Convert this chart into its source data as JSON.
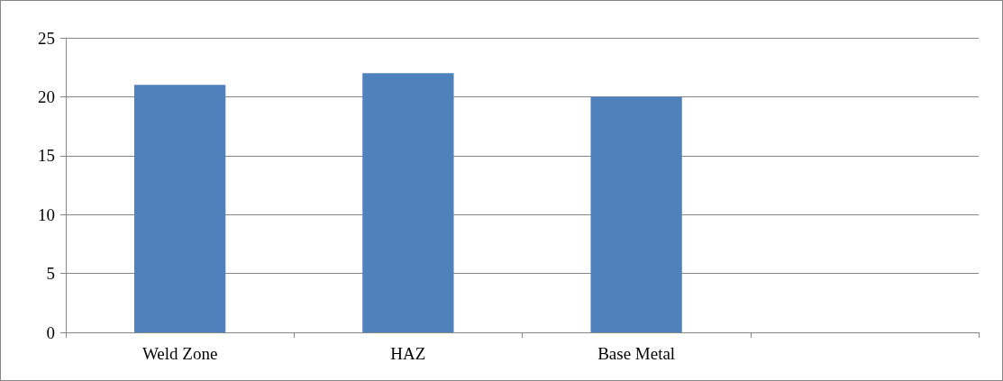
{
  "chart_data": {
    "type": "bar",
    "categories": [
      "Weld Zone",
      "HAZ",
      "Base Metal",
      null
    ],
    "values": [
      21,
      22,
      20,
      null
    ],
    "color": "#4f81bd",
    "ylim": [
      0,
      25
    ],
    "yticks": [
      0,
      5,
      10,
      15,
      20,
      25
    ],
    "grid": "y"
  }
}
